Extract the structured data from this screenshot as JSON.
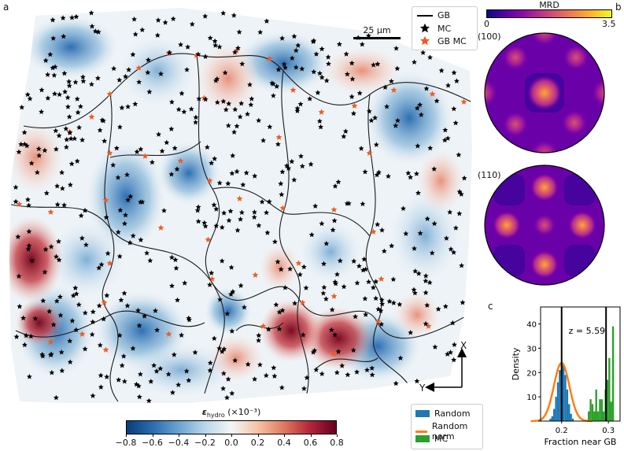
{
  "panel_labels": {
    "a": "a",
    "b": "b",
    "c": "c"
  },
  "map": {
    "scale_bar_label": "25 µm",
    "legend": {
      "gb": "GB",
      "mc": "MC",
      "gb_mc": "GB MC"
    },
    "axes_labels": {
      "x": "X",
      "y": "Y"
    },
    "colorbar": {
      "label": "εhydro (×10⁻³)",
      "label_main": "ε",
      "label_sub": "hydro",
      "label_unit": "(×10⁻³)",
      "ticks": [
        "−0.8",
        "−0.6",
        "−0.4",
        "−0.2",
        "0.0",
        "0.2",
        "0.4",
        "0.6",
        "0.8"
      ],
      "range": [
        -0.8,
        0.8
      ],
      "colors": [
        "#0b3c7a",
        "#2a6db1",
        "#6aa4d1",
        "#b9d7ea",
        "#f3f5f7",
        "#f6c3a7",
        "#e07a5f",
        "#b2263a",
        "#67001f"
      ]
    }
  },
  "pole_figures": {
    "colorbar_title": "MRD",
    "colorbar_min": "0",
    "colorbar_max": "3.5",
    "figures": [
      {
        "label": "(100)"
      },
      {
        "label": "(110)"
      }
    ]
  },
  "histogram_legend": {
    "random": "Random",
    "random_norm": "Random norm",
    "mc": "MC"
  },
  "chart_data": {
    "type": "bar",
    "title": "",
    "xlabel": "Fraction near GB",
    "ylabel": "Density",
    "xlim": [
      0.155,
      0.325
    ],
    "ylim": [
      0,
      47
    ],
    "xticks": [
      0.2,
      0.3
    ],
    "xtick_labels": [
      "0.2",
      "0.3"
    ],
    "yticks": [
      0,
      10,
      20,
      30,
      40
    ],
    "ytick_labels": [
      "",
      "10",
      "20",
      "30",
      "40"
    ],
    "annotation": "z = 5.59",
    "vlines": [
      {
        "x": 0.2,
        "label": "Random mean"
      },
      {
        "x": 0.295,
        "label": "MC"
      }
    ],
    "series": [
      {
        "name": "Random",
        "color": "#1f77b4",
        "bin_width": 0.004,
        "bins": [
          0.174,
          0.178,
          0.182,
          0.186,
          0.19,
          0.194,
          0.198,
          0.202,
          0.206,
          0.21,
          0.214,
          0.218,
          0.222
        ],
        "values": [
          1,
          2,
          5,
          10,
          16,
          21,
          24,
          23,
          19,
          13,
          7,
          3,
          1
        ]
      },
      {
        "name": "MC",
        "color": "#2ca02c",
        "bin_width": 0.004,
        "bins": [
          0.256,
          0.26,
          0.264,
          0.268,
          0.272,
          0.276,
          0.28,
          0.284,
          0.288,
          0.292,
          0.296,
          0.3,
          0.304,
          0.308
        ],
        "values": [
          4,
          9,
          7,
          4,
          13,
          4,
          9,
          9,
          4,
          13,
          17,
          26,
          8,
          39
        ]
      },
      {
        "name": "Random norm",
        "color": "#ff7f0e",
        "type": "curve",
        "mean": 0.2,
        "sd": 0.0165,
        "peak": 24
      }
    ]
  }
}
